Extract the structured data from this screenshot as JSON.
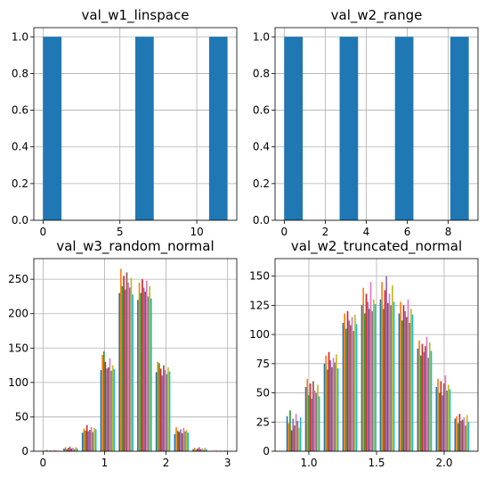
{
  "chart_data": [
    {
      "type": "bar",
      "title": "val_w1_linspace",
      "xlim": [
        -0.6,
        12.6
      ],
      "ylim": [
        0,
        1.05
      ],
      "xticks": [
        0,
        5,
        10
      ],
      "xtick_labels": [
        "0",
        "5",
        "10"
      ],
      "yticks": [
        0.0,
        0.2,
        0.4,
        0.6,
        0.8,
        1.0
      ],
      "ytick_labels": [
        "0.0",
        "0.2",
        "0.4",
        "0.6",
        "0.8",
        "1.0"
      ],
      "bin_width": 1.2,
      "bars": [
        {
          "x": 0.0,
          "value": 1
        },
        {
          "x": 6.0,
          "value": 1
        },
        {
          "x": 10.8,
          "value": 1
        }
      ],
      "color": "#1f77b4",
      "grid": true
    },
    {
      "type": "bar",
      "title": "val_w2_range",
      "xlim": [
        -0.45,
        9.45
      ],
      "ylim": [
        0,
        1.05
      ],
      "xticks": [
        0,
        2,
        4,
        6,
        8
      ],
      "xtick_labels": [
        "0",
        "2",
        "4",
        "6",
        "8"
      ],
      "yticks": [
        0.0,
        0.2,
        0.4,
        0.6,
        0.8,
        1.0
      ],
      "ytick_labels": [
        "0.0",
        "0.2",
        "0.4",
        "0.6",
        "0.8",
        "1.0"
      ],
      "bin_width": 0.9,
      "bars": [
        {
          "x": 0.0,
          "value": 1
        },
        {
          "x": 2.7,
          "value": 1
        },
        {
          "x": 5.4,
          "value": 1
        },
        {
          "x": 8.1,
          "value": 1
        }
      ],
      "color": "#1f77b4",
      "grid": true
    },
    {
      "type": "bar",
      "title": "val_w3_random_normal",
      "xlim": [
        -0.15,
        3.15
      ],
      "ylim": [
        0,
        280
      ],
      "xticks": [
        0,
        1,
        2,
        3
      ],
      "xtick_labels": [
        "0",
        "1",
        "2",
        "3"
      ],
      "yticks": [
        0,
        50,
        100,
        150,
        200,
        250
      ],
      "ytick_labels": [
        "0",
        "50",
        "100",
        "150",
        "200",
        "250"
      ],
      "bin_start": 0.0,
      "bin_width": 0.3,
      "series_count": 10,
      "group_heights": [
        [
          1,
          2,
          0,
          1,
          1,
          0,
          2,
          1,
          1,
          0
        ],
        [
          4,
          6,
          3,
          5,
          7,
          4,
          5,
          3,
          6,
          4
        ],
        [
          27,
          33,
          30,
          38,
          29,
          31,
          35,
          28,
          34,
          32
        ],
        [
          118,
          140,
          145,
          130,
          120,
          122,
          135,
          117,
          125,
          119
        ],
        [
          230,
          265,
          240,
          255,
          235,
          260,
          245,
          238,
          252,
          228
        ],
        [
          220,
          245,
          230,
          250,
          238,
          232,
          248,
          225,
          240,
          222
        ],
        [
          115,
          130,
          128,
          120,
          110,
          125,
          118,
          112,
          122,
          116
        ],
        [
          25,
          35,
          30,
          28,
          32,
          26,
          34,
          29,
          31,
          27
        ],
        [
          3,
          5,
          2,
          4,
          6,
          3,
          4,
          2,
          5,
          3
        ],
        [
          0,
          1,
          0,
          1,
          0,
          0,
          1,
          0,
          0,
          1
        ]
      ],
      "series_colors": [
        "#1f77b4",
        "#ff7f0e",
        "#2ca02c",
        "#d62728",
        "#9467bd",
        "#8c564b",
        "#e377c2",
        "#7f7f7f",
        "#bcbd22",
        "#17becf"
      ],
      "grid": true
    },
    {
      "type": "bar",
      "title": "val_w2_truncated_normal",
      "xlim": [
        0.75,
        2.25
      ],
      "ylim": [
        0,
        165
      ],
      "xticks": [
        1.0,
        1.5,
        2.0
      ],
      "xtick_labels": [
        "1.0",
        "1.5",
        "2.0"
      ],
      "yticks": [
        0,
        25,
        50,
        75,
        100,
        125,
        150
      ],
      "ytick_labels": [
        "0",
        "25",
        "50",
        "75",
        "100",
        "125",
        "150"
      ],
      "bin_start": 0.82,
      "bin_width": 0.138,
      "series_count": 10,
      "group_heights": [
        [
          30,
          24,
          35,
          18,
          28,
          22,
          32,
          26,
          20,
          29
        ],
        [
          55,
          62,
          48,
          58,
          45,
          60,
          52,
          50,
          57,
          47
        ],
        [
          75,
          82,
          70,
          85,
          78,
          72,
          80,
          76,
          83,
          71
        ],
        [
          110,
          118,
          105,
          120,
          112,
          108,
          115,
          103,
          117,
          109
        ],
        [
          125,
          140,
          118,
          135,
          128,
          122,
          145,
          120,
          130,
          126
        ],
        [
          130,
          145,
          122,
          138,
          150,
          127,
          135,
          125,
          142,
          128
        ],
        [
          118,
          128,
          112,
          125,
          120,
          115,
          130,
          110,
          122,
          117
        ],
        [
          88,
          95,
          82,
          92,
          85,
          90,
          98,
          80,
          93,
          86
        ],
        [
          55,
          62,
          50,
          60,
          48,
          58,
          65,
          52,
          57,
          53
        ],
        [
          28,
          30,
          24,
          32,
          26,
          27,
          29,
          22,
          31,
          25
        ]
      ],
      "series_colors": [
        "#1f77b4",
        "#ff7f0e",
        "#2ca02c",
        "#d62728",
        "#9467bd",
        "#8c564b",
        "#e377c2",
        "#7f7f7f",
        "#bcbd22",
        "#17becf"
      ],
      "grid": true
    }
  ]
}
